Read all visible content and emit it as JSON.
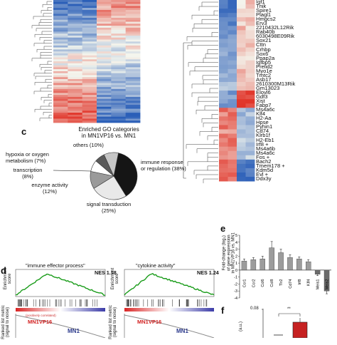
{
  "heatmap_left": {
    "rows": 62,
    "cols": 6,
    "palette": {
      "low": "#2b5fb8",
      "mid": "#f4f6ee",
      "high": "#e1352a"
    }
  },
  "heatmap_right": {
    "genes": [
      "Igf1",
      "Tnik",
      "Spire1",
      "Plagl1",
      "Hmgcs2",
      "Erv3",
      "2210432L12Rik",
      "Rab40b",
      "6030498E09Rik",
      "Sox21",
      "Cttn",
      "Crhbp",
      "Sox6",
      "Ppap2a",
      "Igfbp5",
      "Prelid2",
      "Myo1e",
      "Tmtc2",
      "Asb17",
      "2610300M13Rik",
      "Gm13023",
      "Elovl6",
      "Gdf3",
      "Xist",
      "Fabp7",
      "Ms4a6c",
      "Klf4",
      "H2-Aa",
      "Hpse",
      "Pyhin1",
      "Cd74",
      "Klrb1f",
      "H2-Eb1",
      "Irf8 +",
      "Ms4a6b",
      "Ms4a6c",
      "Fos +",
      "Bach2",
      "Tmem178 +",
      "Kdm5d",
      "Evl +",
      "Ddx3y"
    ]
  },
  "panel_c": {
    "letter": "c",
    "title_lines": [
      "Enriched GO categories",
      "in MN1VP16 vs. MN1"
    ],
    "labels": {
      "others": "others (10%)",
      "hypoxia": [
        "hypoxia or oxygen",
        "metabolism (7%)"
      ],
      "transcription": [
        "transcription",
        "(8%)"
      ],
      "enzyme": [
        "enzyme activity",
        "(12%)"
      ],
      "signal": [
        "signal transduction",
        "(25%)"
      ],
      "immune": [
        "immune response",
        "or regulation (38%)"
      ]
    },
    "slices": [
      {
        "name": "immune response or regulation",
        "value": 38,
        "color": "#151515"
      },
      {
        "name": "signal transduction",
        "value": 25,
        "color": "#e9e9e9"
      },
      {
        "name": "enzyme activity",
        "value": 12,
        "color": "#9a9a9a"
      },
      {
        "name": "transcription",
        "value": 8,
        "color": "#ffffff"
      },
      {
        "name": "hypoxia or oxygen metabolism",
        "value": 7,
        "color": "#5a5a5a"
      },
      {
        "name": "others",
        "value": 10,
        "color": "#c6c6c6"
      }
    ]
  },
  "panel_d": {
    "letter": "d",
    "plots": [
      {
        "title": "\"immune effector process\"",
        "nes": "NES 1.18"
      },
      {
        "title": "\"cytokine activity\"",
        "nes": "NES 1.24"
      }
    ],
    "ylabel_top": [
      "Enrichment",
      "score"
    ],
    "ylabel_bottom": [
      "Ranked list metric",
      "(signal to noise)"
    ],
    "pos_label": "MN1VP16",
    "neg_label": "MN1",
    "pos_tag": "(positively correlated)"
  },
  "panel_e": {
    "letter": "e",
    "ylabel_lines": [
      "Fold-change (log₂)",
      "of gene expression",
      "in MN1VP16 vs. MN1"
    ],
    "yticks": [
      "5",
      "4",
      "3",
      "2",
      "1",
      "0",
      "-1",
      "-2",
      "-3",
      "-4"
    ]
  },
  "panel_f": {
    "letter": "f",
    "tick": "0.08",
    "sig": "**",
    "ylabel": "(a.u.)"
  },
  "chart_data": {
    "type": "bar",
    "title": "",
    "xlabel": "",
    "ylabel": "Fold-change (log2) of gene expression in MN1VP16 vs. MN1",
    "ylim": [
      -4,
      5
    ],
    "categories": [
      "Ccr1",
      "Ccr2",
      "Ccl6",
      "Ccl8",
      "Tlr2",
      "Cd74",
      "Irf8",
      "Klf4",
      "Meis1",
      "Meis2"
    ],
    "values": [
      1.3,
      1.5,
      1.6,
      3.2,
      2.5,
      1.8,
      1.6,
      1.2,
      -0.6,
      -3.0
    ],
    "errors": [
      0.3,
      0.3,
      0.4,
      0.9,
      0.5,
      0.4,
      0.3,
      0.3,
      0.2,
      0.4
    ],
    "colors": {
      "up": "#9c9c9c",
      "down": "#6b6b6b"
    }
  }
}
